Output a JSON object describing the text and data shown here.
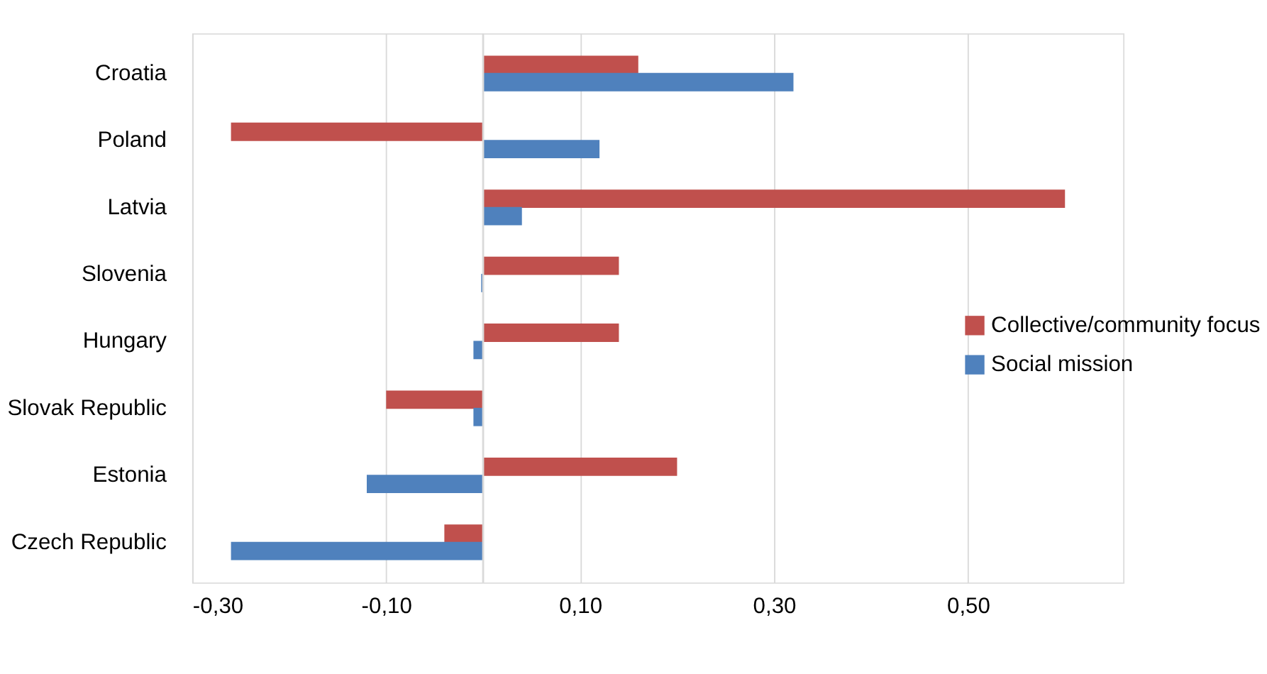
{
  "chart_data": {
    "type": "bar",
    "orientation": "horizontal",
    "categories": [
      "Croatia",
      "Poland",
      "Latvia",
      "Slovenia",
      "Hungary",
      "Slovak Republic",
      "Estonia",
      "Czech Republic"
    ],
    "series": [
      {
        "name": "Collective/community focus",
        "color": "#c0504d",
        "values": [
          0.16,
          -0.26,
          0.6,
          0.14,
          0.14,
          -0.1,
          0.2,
          -0.04
        ]
      },
      {
        "name": "Social mission",
        "color": "#4f81bd",
        "values": [
          0.32,
          0.12,
          0.04,
          -0.002,
          -0.01,
          -0.01,
          -0.12,
          -0.26
        ]
      }
    ],
    "xlim": [
      -0.3,
      0.66
    ],
    "xticks": [
      {
        "value": -0.3,
        "label": "-0,30"
      },
      {
        "value": -0.1,
        "label": "-0,10"
      },
      {
        "value": 0.1,
        "label": "0,10"
      },
      {
        "value": 0.3,
        "label": "0,30"
      },
      {
        "value": 0.5,
        "label": "0,50"
      }
    ],
    "ref_lines": [
      {
        "axis": "x",
        "value": 0,
        "color": "#d9d9d9"
      }
    ],
    "grid": "x",
    "legend": "right"
  }
}
